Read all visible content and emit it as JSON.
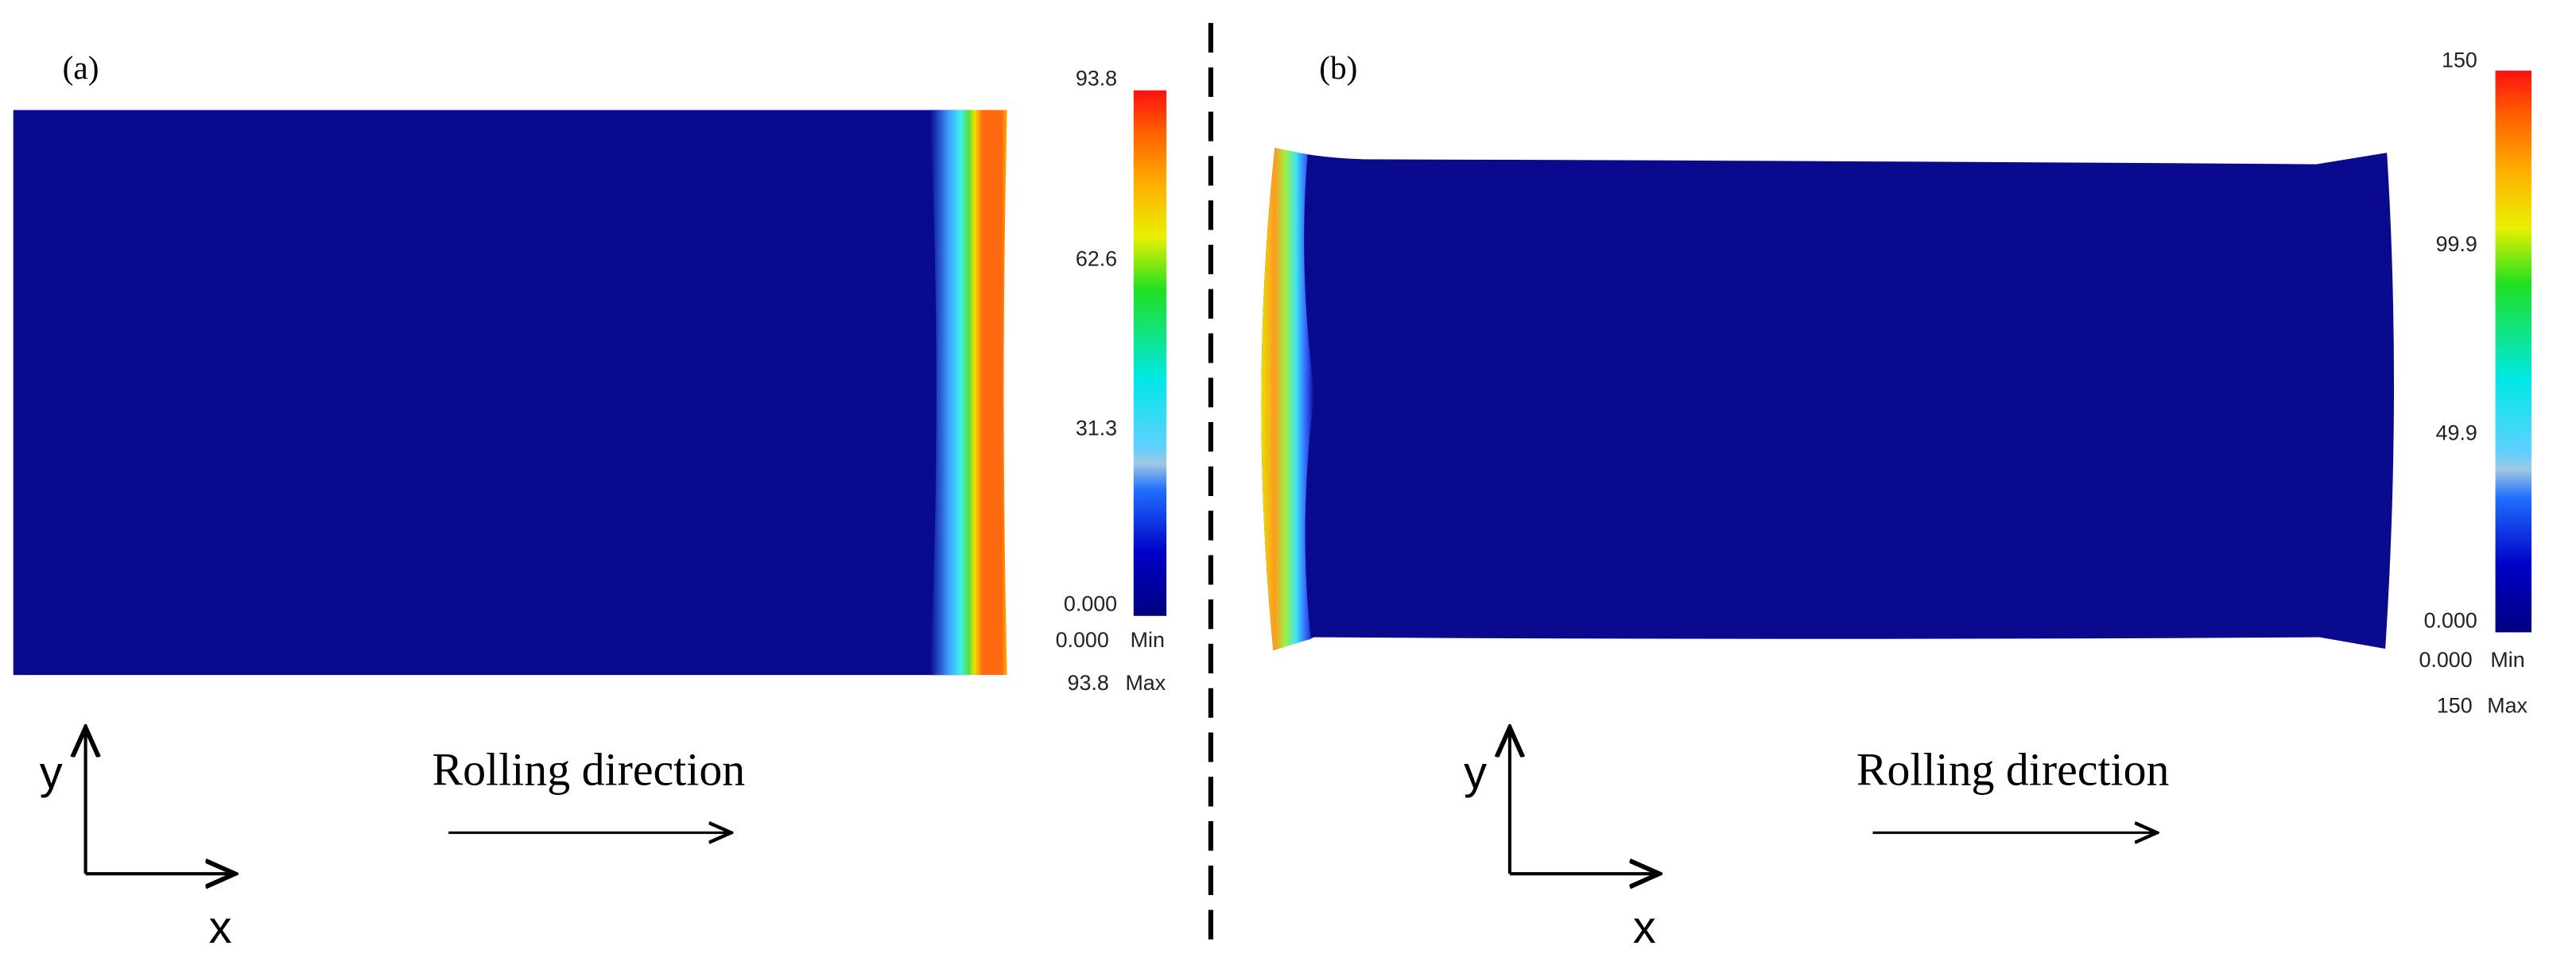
{
  "panels": [
    {
      "label": "(a)",
      "colorbar": {
        "ticks": [
          "93.8",
          "62.6",
          "31.3",
          "0.000"
        ],
        "min_value": "0.000",
        "min_word": "Min",
        "max_value": "93.8",
        "max_word": "Max"
      },
      "axes": {
        "y": "y",
        "x": "x"
      },
      "direction": "Rolling direction"
    },
    {
      "label": "(b)",
      "colorbar": {
        "ticks": [
          "150",
          "99.9",
          "49.9",
          "0.000"
        ],
        "min_value": "0.000",
        "min_word": "Min",
        "max_value": "150",
        "max_word": "Max"
      },
      "axes": {
        "y": "y",
        "x": "x"
      },
      "direction": "Rolling direction"
    }
  ]
}
